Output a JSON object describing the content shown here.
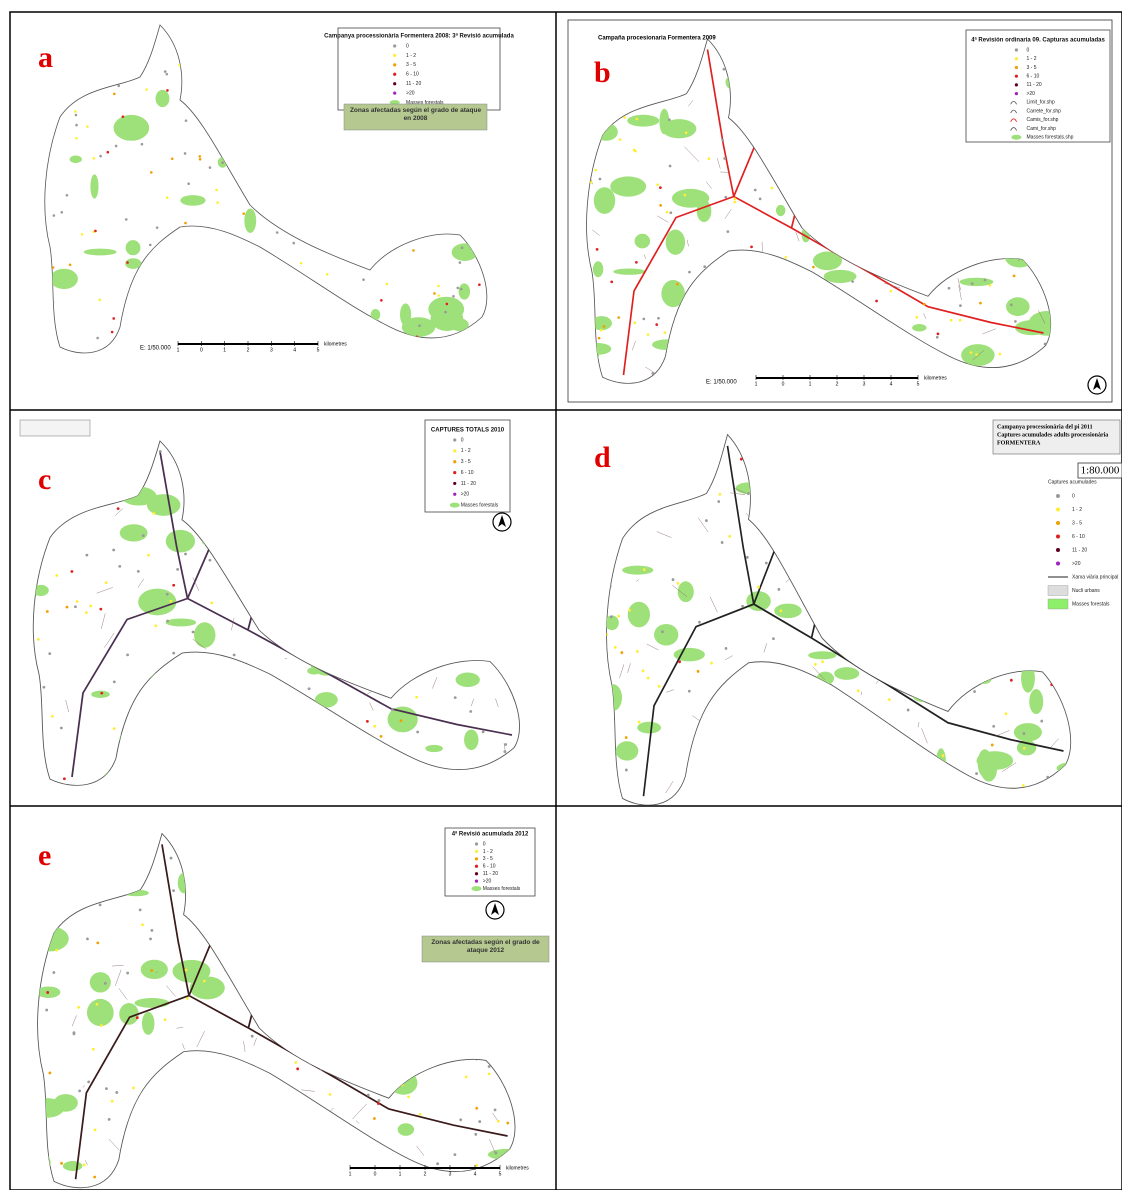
{
  "panels": [
    {
      "label": "a",
      "legend_title": "Campanya processionària Formentera 2008: 3ª Revisió acumulada",
      "legend_items": [
        "0",
        "1 - 2",
        "3 - 5",
        "6 - 10",
        "11 - 20",
        ">20",
        "Masses forestals"
      ],
      "note": "Zonas afectadas según el grado de ataque en 2008",
      "scale_label": "E: 1/50.000",
      "scale_ticks": [
        "1",
        "0",
        "1",
        "2",
        "3",
        "4",
        "5"
      ],
      "scale_unit": "kilometres"
    },
    {
      "label": "b",
      "title": "Campaña procesionaria Formentera 2009",
      "legend_title": "4ª Revisión ordinaria 09. Capturas acumuladas",
      "legend_items": [
        "0",
        "1 - 2",
        "3 - 5",
        "6 - 10",
        "11 - 20",
        ">20",
        "Limit_for.shp",
        "Carrete_for.shp",
        "Camis_for.shp",
        "Cami_for.shp",
        "Masses forestals.shp"
      ],
      "scale_label": "E: 1/50.000",
      "scale_ticks": [
        "1",
        "0",
        "1",
        "2",
        "3",
        "4",
        "5"
      ],
      "scale_unit": "kilometres"
    },
    {
      "label": "c",
      "legend_title": "CAPTURES TOTALS 2010",
      "legend_items": [
        "0",
        "1 - 2",
        "3 - 5",
        "6 - 10",
        "11 - 20",
        ">20",
        "Masses forestals"
      ]
    },
    {
      "label": "d",
      "title": "Campanya processionària del pi 2011",
      "subtitle": "Captures acumulades adults processionària",
      "place": "FORMENTERA",
      "scale_label": "1:80.000",
      "legend_title": "Captures acumulades",
      "legend_items": [
        "0",
        "1 - 2",
        "3 - 5",
        "6 - 10",
        "11 - 20",
        ">20",
        "Xarxa viària principal",
        "Nucli urbans",
        "Masses forestals"
      ]
    },
    {
      "label": "e",
      "legend_title": "4ª Revisió acumulada 2012",
      "legend_items": [
        "0",
        "1 - 2",
        "3 - 5",
        "6 - 10",
        "11 - 20",
        ">20",
        "Masses forestals"
      ],
      "note": "Zonas afectadas según el grado de ataque 2012",
      "scale_ticks": [
        "1",
        "0",
        "1",
        "2",
        "3",
        "4",
        "5"
      ],
      "scale_unit": "kilometres"
    }
  ]
}
